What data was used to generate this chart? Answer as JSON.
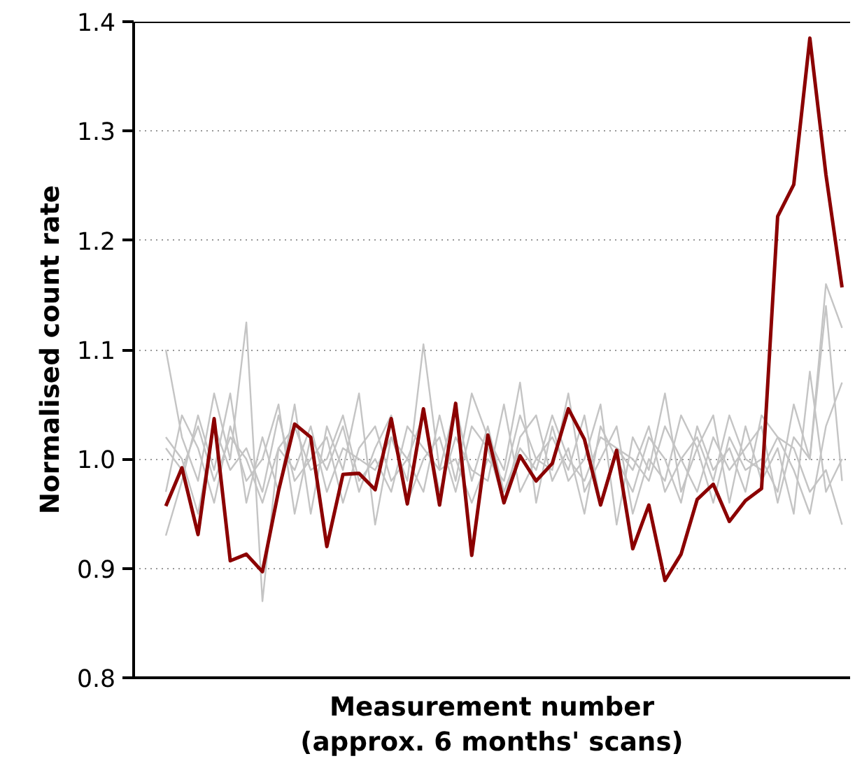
{
  "chart_data": {
    "type": "line",
    "xlabel": "Measurement number\n(approx. 6 months' scans)",
    "ylabel": "Normalised count rate",
    "categories": [
      null,
      null,
      null,
      null,
      null,
      null,
      null,
      null,
      null,
      null,
      null,
      null,
      null,
      null,
      null,
      null,
      null,
      null,
      null,
      null,
      null,
      null,
      null,
      null,
      null,
      null,
      null,
      null,
      null,
      null,
      null,
      null,
      null,
      null,
      null,
      null,
      null,
      null,
      null,
      null,
      null,
      null,
      null
    ],
    "series": [
      {
        "color": "#c4c4c4",
        "values": [
          1.1,
          1.02,
          0.98,
          1.06,
          1.0,
          1.125,
          0.87,
          1.01,
          0.99,
          1.03,
          0.97,
          1.01,
          1.0,
          0.99,
          1.02,
          0.98,
          1.105,
          0.99,
          1.0,
          0.96,
          1.0,
          0.98,
          1.04,
          1.0,
          0.99,
          1.06,
          0.97,
          1.0,
          1.03,
          0.95,
          1.0,
          0.98,
          1.04,
          1.01,
          0.96,
          1.02,
          0.99,
          1.0,
          0.97,
          1.05,
          1.0,
          1.16,
          1.12
        ]
      },
      {
        "color": "#c4c4c4",
        "values": [
          0.93,
          0.98,
          1.04,
          0.99,
          1.06,
          0.96,
          1.02,
          0.97,
          1.05,
          0.95,
          1.03,
          0.99,
          1.06,
          0.94,
          1.02,
          1.0,
          0.97,
          1.04,
          0.98,
          1.06,
          1.02,
          0.99,
          1.07,
          0.96,
          1.03,
          0.98,
          1.0,
          1.05,
          0.94,
          1.02,
          0.99,
          1.06,
          0.97,
          1.01,
          1.04,
          0.96,
          1.03,
          0.98,
          1.01,
          0.95,
          1.08,
          0.97,
          1.0
        ]
      },
      {
        "color": "#c4c4c4",
        "values": [
          1.02,
          1.0,
          0.95,
          1.03,
          0.99,
          1.01,
          0.97,
          1.04,
          0.98,
          1.0,
          1.02,
          0.96,
          1.01,
          1.03,
          0.98,
          1.0,
          1.04,
          0.97,
          1.02,
          0.99,
          0.98,
          1.05,
          0.97,
          1.0,
          1.02,
          0.99,
          1.04,
          0.96,
          1.01,
          1.0,
          0.98,
          1.03,
          1.0,
          0.97,
          1.02,
          0.99,
          1.01,
          1.03,
          0.96,
          1.02,
          1.0,
          1.14,
          0.98
        ]
      },
      {
        "color": "#c4c4c4",
        "values": [
          0.97,
          1.04,
          1.01,
          0.96,
          1.03,
          0.98,
          1.0,
          1.05,
          0.95,
          1.02,
          0.99,
          1.03,
          0.97,
          1.01,
          1.04,
          0.96,
          1.0,
          1.02,
          0.97,
          1.03,
          1.01,
          0.96,
          1.02,
          1.04,
          0.98,
          1.01,
          0.95,
          1.03,
          1.0,
          0.97,
          1.02,
          1.0,
          0.96,
          1.03,
          0.99,
          1.01,
          0.97,
          1.04,
          1.02,
          0.99,
          0.95,
          1.03,
          1.07
        ]
      },
      {
        "color": "#c4c4c4",
        "values": [
          1.01,
          0.99,
          1.03,
          0.98,
          1.02,
          1.0,
          0.96,
          1.01,
          1.03,
          0.99,
          1.0,
          1.04,
          0.98,
          1.0,
          0.97,
          1.03,
          1.01,
          0.99,
          1.05,
          0.98,
          1.03,
          0.97,
          1.01,
          0.99,
          1.04,
          1.0,
          0.98,
          1.02,
          1.01,
          0.99,
          1.03,
          0.97,
          1.0,
          1.02,
          0.98,
          1.04,
          1.0,
          0.99,
          1.02,
          1.01,
          0.97,
          0.99,
          0.94
        ]
      },
      {
        "color": "#8b0000",
        "values": [
          0.957,
          0.992,
          0.931,
          1.037,
          0.907,
          0.913,
          0.897,
          0.971,
          1.032,
          1.02,
          0.92,
          0.986,
          0.987,
          0.972,
          1.037,
          0.959,
          1.046,
          0.958,
          1.051,
          0.912,
          1.022,
          0.96,
          1.003,
          0.98,
          0.996,
          1.046,
          1.018,
          0.958,
          1.008,
          0.918,
          0.958,
          0.889,
          0.913,
          0.963,
          0.977,
          0.943,
          0.962,
          0.973,
          1.222,
          1.251,
          1.385,
          1.26,
          1.157
        ]
      }
    ],
    "ylim": [
      0.8,
      1.4
    ],
    "yticks": [
      {
        "value": 0.8,
        "label": "0.8"
      },
      {
        "value": 0.9,
        "label": "0.9"
      },
      {
        "value": 1.0,
        "label": "1.0"
      },
      {
        "value": 1.1,
        "label": "1.1"
      },
      {
        "value": 1.2,
        "label": "1.2"
      },
      {
        "value": 1.3,
        "label": "1.3"
      },
      {
        "value": 1.4,
        "label": "1.4"
      }
    ],
    "grid": "y",
    "tick_labels": "y"
  }
}
